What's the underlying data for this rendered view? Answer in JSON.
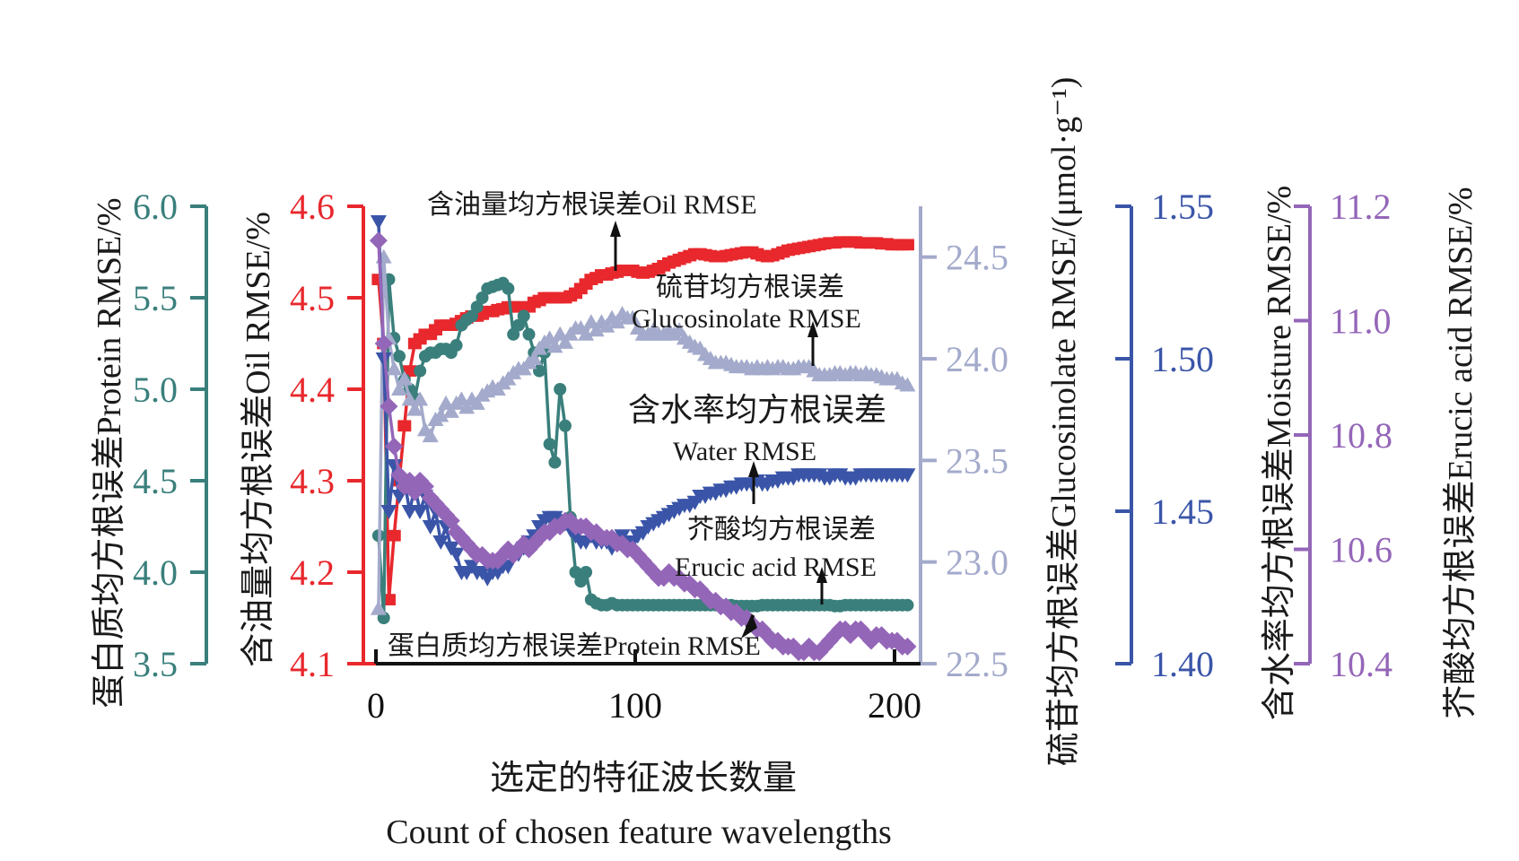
{
  "chart_data": {
    "type": "line",
    "title": "",
    "xlabel": "选定的特征波长数量",
    "xlabel_en": "Count of chosen feature wavelengths",
    "x_axis": {
      "range": [
        0,
        205
      ],
      "ticks": [
        0,
        100,
        200
      ],
      "tick_labels": [
        "0",
        "100",
        "200"
      ]
    },
    "axes": [
      {
        "id": "protein",
        "label": "蛋白质均方根误差Protein RMSE/%",
        "color": "#3a7f7c",
        "side": "left-outer",
        "range": [
          3.5,
          6.0
        ],
        "ticks": [
          "3.5",
          "4.0",
          "4.5",
          "5.0",
          "5.5",
          "6.0"
        ]
      },
      {
        "id": "oil",
        "label": "含油量均方根误差Oil RMSE/%",
        "color": "#e8282d",
        "side": "left",
        "range": [
          4.1,
          4.6
        ],
        "ticks": [
          "4.1",
          "4.2",
          "4.3",
          "4.4",
          "4.5",
          "4.6"
        ]
      },
      {
        "id": "glucosinolate",
        "label": "硫苷均方根误差Glucosinolate RMSE/(μmol·g⁻¹)",
        "color": "#a3aacb",
        "side": "right",
        "range": [
          22.5,
          24.75
        ],
        "ticks": [
          "22.5",
          "23.0",
          "23.5",
          "24.0",
          "24.5"
        ]
      },
      {
        "id": "moisture",
        "label": "含水率均方根误差Moisture RMSE/%",
        "color": "#3a55a8",
        "side": "right-outer",
        "range": [
          1.4,
          1.55
        ],
        "ticks": [
          "1.40",
          "1.45",
          "1.50",
          "1.55"
        ]
      },
      {
        "id": "erucic",
        "label": "芥酸均方根误差Erucic acid RMSE/%",
        "color": "#9466b8",
        "side": "right-outer-2",
        "range": [
          10.4,
          11.2
        ],
        "ticks": [
          "10.4",
          "10.6",
          "10.8",
          "11.0",
          "11.2"
        ]
      }
    ],
    "series": [
      {
        "name": "Oil RMSE",
        "axis": "oil",
        "marker": "square",
        "color": "#e8282d",
        "x": [
          1,
          3,
          5,
          7,
          9,
          11,
          13,
          15,
          17,
          19,
          21,
          23,
          25,
          27,
          29,
          31,
          33,
          35,
          37,
          39,
          41,
          43,
          45,
          47,
          49,
          51,
          53,
          55,
          57,
          59,
          61,
          63,
          65,
          67,
          69,
          71,
          73,
          75,
          77,
          79,
          81,
          83,
          85,
          87,
          89,
          91,
          93,
          95,
          97,
          99,
          101,
          103,
          105,
          107,
          109,
          111,
          113,
          115,
          117,
          119,
          121,
          123,
          125,
          127,
          129,
          131,
          133,
          135,
          137,
          139,
          141,
          143,
          145,
          147,
          149,
          151,
          153,
          155,
          157,
          159,
          161,
          163,
          165,
          167,
          169,
          171,
          173,
          175,
          177,
          179,
          181,
          183,
          185,
          187,
          189,
          191,
          193,
          195,
          197,
          199,
          201,
          203,
          205
        ],
        "y": [
          4.52,
          4.45,
          4.17,
          4.24,
          4.3,
          4.36,
          4.42,
          4.45,
          4.455,
          4.46,
          4.46,
          4.465,
          4.47,
          4.47,
          4.47,
          4.472,
          4.475,
          4.478,
          4.48,
          4.48,
          4.482,
          4.485,
          4.485,
          4.487,
          4.488,
          4.49,
          4.49,
          4.49,
          4.49,
          4.49,
          4.495,
          4.497,
          4.5,
          4.5,
          4.5,
          4.5,
          4.5,
          4.502,
          4.505,
          4.51,
          4.515,
          4.52,
          4.522,
          4.525,
          4.525,
          4.527,
          4.528,
          4.53,
          4.53,
          4.53,
          4.528,
          4.527,
          4.528,
          4.53,
          4.532,
          4.535,
          4.538,
          4.54,
          4.542,
          4.544,
          4.546,
          4.548,
          4.548,
          4.547,
          4.546,
          4.545,
          4.545,
          4.546,
          4.547,
          4.548,
          4.549,
          4.55,
          4.55,
          4.548,
          4.546,
          4.545,
          4.546,
          4.548,
          4.55,
          4.552,
          4.553,
          4.554,
          4.555,
          4.556,
          4.557,
          4.558,
          4.559,
          4.56,
          4.56,
          4.561,
          4.561,
          4.561,
          4.561,
          4.56,
          4.56,
          4.56,
          4.56,
          4.559,
          4.559,
          4.558,
          4.558,
          4.558,
          4.558
        ]
      },
      {
        "name": "Protein RMSE",
        "axis": "protein",
        "marker": "circle",
        "color": "#3a7f7c",
        "x": [
          1,
          3,
          5,
          7,
          9,
          11,
          13,
          15,
          17,
          19,
          21,
          23,
          25,
          27,
          29,
          31,
          33,
          35,
          37,
          39,
          41,
          43,
          45,
          47,
          49,
          51,
          53,
          55,
          57,
          59,
          61,
          63,
          65,
          67,
          69,
          71,
          73,
          75,
          77,
          79,
          81,
          83,
          85,
          87,
          89,
          91,
          93,
          95,
          97,
          99,
          101,
          103,
          105,
          107,
          109,
          111,
          113,
          115,
          117,
          119,
          121,
          123,
          125,
          127,
          129,
          131,
          133,
          135,
          137,
          139,
          141,
          143,
          145,
          147,
          149,
          151,
          153,
          155,
          157,
          159,
          161,
          163,
          165,
          167,
          169,
          171,
          173,
          175,
          177,
          179,
          181,
          183,
          185,
          187,
          189,
          191,
          193,
          195,
          197,
          199,
          201,
          203,
          205
        ],
        "y": [
          4.2,
          3.75,
          5.6,
          5.28,
          5.18,
          5.05,
          5.0,
          4.95,
          5.1,
          5.18,
          5.2,
          5.2,
          5.22,
          5.22,
          5.2,
          5.24,
          5.35,
          5.38,
          5.4,
          5.45,
          5.5,
          5.55,
          5.56,
          5.57,
          5.58,
          5.55,
          5.3,
          5.35,
          5.4,
          5.3,
          5.2,
          5.1,
          5.2,
          4.7,
          4.6,
          5.0,
          4.8,
          4.3,
          4.0,
          3.95,
          4.0,
          3.85,
          3.83,
          3.82,
          3.82,
          3.83,
          3.82,
          3.82,
          3.82,
          3.82,
          3.82,
          3.82,
          3.82,
          3.82,
          3.82,
          3.82,
          3.82,
          3.82,
          3.82,
          3.82,
          3.82,
          3.82,
          3.82,
          3.82,
          3.82,
          3.82,
          3.82,
          3.82,
          3.82,
          3.815,
          3.815,
          3.815,
          3.815,
          3.815,
          3.82,
          3.82,
          3.82,
          3.82,
          3.82,
          3.82,
          3.82,
          3.82,
          3.82,
          3.82,
          3.82,
          3.82,
          3.82,
          3.82,
          3.815,
          3.815,
          3.82,
          3.82,
          3.82,
          3.82,
          3.82,
          3.82,
          3.82,
          3.82,
          3.82,
          3.82,
          3.82,
          3.82,
          3.82
        ]
      },
      {
        "name": "Glucosinolate RMSE",
        "axis": "glucosinolate",
        "marker": "triangle-up",
        "color": "#a3aacb",
        "x": [
          1,
          3,
          5,
          7,
          9,
          11,
          13,
          15,
          17,
          19,
          21,
          23,
          25,
          27,
          29,
          31,
          33,
          35,
          37,
          39,
          41,
          43,
          45,
          47,
          49,
          51,
          53,
          55,
          57,
          59,
          61,
          63,
          65,
          67,
          69,
          71,
          73,
          75,
          77,
          79,
          81,
          83,
          85,
          87,
          89,
          91,
          93,
          95,
          97,
          99,
          101,
          103,
          105,
          107,
          109,
          111,
          113,
          115,
          117,
          119,
          121,
          123,
          125,
          127,
          129,
          131,
          133,
          135,
          137,
          139,
          141,
          143,
          145,
          147,
          149,
          151,
          153,
          155,
          157,
          159,
          161,
          163,
          165,
          167,
          169,
          171,
          173,
          175,
          177,
          179,
          181,
          183,
          185,
          187,
          189,
          191,
          193,
          195,
          197,
          199,
          201,
          203,
          205
        ],
        "y": [
          22.77,
          24.5,
          24.1,
          23.95,
          23.85,
          23.9,
          23.8,
          23.75,
          23.8,
          23.65,
          23.62,
          23.7,
          23.72,
          23.78,
          23.74,
          23.78,
          23.8,
          23.76,
          23.8,
          23.78,
          23.82,
          23.84,
          23.86,
          23.85,
          23.88,
          23.9,
          23.93,
          23.95,
          23.95,
          23.98,
          24.0,
          24.05,
          24.08,
          24.1,
          24.06,
          24.12,
          24.08,
          24.12,
          24.15,
          24.15,
          24.12,
          24.18,
          24.14,
          24.18,
          24.16,
          24.2,
          24.18,
          24.22,
          24.2,
          24.2,
          24.15,
          24.12,
          24.12,
          24.14,
          24.12,
          24.12,
          24.14,
          24.12,
          24.14,
          24.1,
          24.08,
          24.06,
          24.05,
          24.02,
          24.0,
          23.98,
          23.98,
          23.98,
          23.97,
          23.96,
          23.96,
          23.96,
          23.95,
          23.96,
          23.95,
          23.96,
          23.95,
          23.96,
          23.96,
          23.95,
          23.95,
          23.96,
          23.96,
          23.96,
          23.94,
          23.92,
          23.92,
          23.92,
          23.93,
          23.93,
          23.92,
          23.93,
          23.93,
          23.92,
          23.93,
          23.92,
          23.92,
          23.91,
          23.9,
          23.9,
          23.9,
          23.88,
          23.87
        ]
      },
      {
        "name": "Water RMSE",
        "axis": "moisture",
        "marker": "triangle-down",
        "color": "#3a55a8",
        "x": [
          1,
          3,
          5,
          7,
          9,
          11,
          13,
          15,
          17,
          19,
          21,
          23,
          25,
          27,
          29,
          31,
          33,
          35,
          37,
          39,
          41,
          43,
          45,
          47,
          49,
          51,
          53,
          55,
          57,
          59,
          61,
          63,
          65,
          67,
          69,
          71,
          73,
          75,
          77,
          79,
          81,
          83,
          85,
          87,
          89,
          91,
          93,
          95,
          97,
          99,
          101,
          103,
          105,
          107,
          109,
          111,
          113,
          115,
          117,
          119,
          121,
          123,
          125,
          127,
          129,
          131,
          133,
          135,
          137,
          139,
          141,
          143,
          145,
          147,
          149,
          151,
          153,
          155,
          157,
          159,
          161,
          163,
          165,
          167,
          169,
          171,
          173,
          175,
          177,
          179,
          181,
          183,
          185,
          187,
          189,
          191,
          193,
          195,
          197,
          199,
          201,
          203,
          205
        ],
        "y": [
          1.545,
          1.5,
          1.45,
          1.465,
          1.455,
          1.46,
          1.45,
          1.458,
          1.45,
          1.455,
          1.445,
          1.45,
          1.44,
          1.445,
          1.438,
          1.436,
          1.43,
          1.43,
          1.432,
          1.43,
          1.43,
          1.428,
          1.43,
          1.43,
          1.432,
          1.432,
          1.435,
          1.436,
          1.438,
          1.44,
          1.442,
          1.445,
          1.447,
          1.448,
          1.448,
          1.447,
          1.446,
          1.444,
          1.442,
          1.44,
          1.44,
          1.442,
          1.44,
          1.44,
          1.44,
          1.438,
          1.44,
          1.442,
          1.44,
          1.44,
          1.442,
          1.443,
          1.445,
          1.446,
          1.447,
          1.448,
          1.449,
          1.45,
          1.451,
          1.452,
          1.452,
          1.453,
          1.455,
          1.455,
          1.456,
          1.456,
          1.457,
          1.457,
          1.458,
          1.458,
          1.459,
          1.459,
          1.459,
          1.46,
          1.459,
          1.459,
          1.46,
          1.46,
          1.461,
          1.461,
          1.461,
          1.462,
          1.462,
          1.462,
          1.462,
          1.462,
          1.461,
          1.461,
          1.462,
          1.462,
          1.461,
          1.461,
          1.461,
          1.462,
          1.462,
          1.462,
          1.462,
          1.462,
          1.462,
          1.462,
          1.462,
          1.462,
          1.462
        ]
      },
      {
        "name": "Erucic acid RMSE",
        "axis": "erucic",
        "marker": "diamond",
        "color": "#9466b8",
        "x": [
          1,
          3,
          5,
          7,
          9,
          11,
          13,
          15,
          17,
          19,
          21,
          23,
          25,
          27,
          29,
          31,
          33,
          35,
          37,
          39,
          41,
          43,
          45,
          47,
          49,
          51,
          53,
          55,
          57,
          59,
          61,
          63,
          65,
          67,
          69,
          71,
          73,
          75,
          77,
          79,
          81,
          83,
          85,
          87,
          89,
          91,
          93,
          95,
          97,
          99,
          101,
          103,
          105,
          107,
          109,
          111,
          113,
          115,
          117,
          119,
          121,
          123,
          125,
          127,
          129,
          131,
          133,
          135,
          137,
          139,
          141,
          143,
          145,
          147,
          149,
          151,
          153,
          155,
          157,
          159,
          161,
          163,
          165,
          167,
          169,
          171,
          173,
          175,
          177,
          179,
          181,
          183,
          185,
          187,
          189,
          191,
          193,
          195,
          197,
          199,
          201,
          203,
          205
        ],
        "y": [
          11.14,
          10.96,
          10.85,
          10.78,
          10.73,
          10.71,
          10.72,
          10.7,
          10.72,
          10.71,
          10.69,
          10.68,
          10.67,
          10.66,
          10.65,
          10.63,
          10.62,
          10.61,
          10.6,
          10.59,
          10.59,
          10.58,
          10.58,
          10.58,
          10.59,
          10.6,
          10.59,
          10.6,
          10.61,
          10.6,
          10.61,
          10.62,
          10.63,
          10.63,
          10.64,
          10.64,
          10.65,
          10.65,
          10.64,
          10.64,
          10.64,
          10.63,
          10.63,
          10.62,
          10.62,
          10.62,
          10.61,
          10.61,
          10.6,
          10.6,
          10.59,
          10.58,
          10.57,
          10.56,
          10.55,
          10.55,
          10.56,
          10.55,
          10.55,
          10.54,
          10.54,
          10.53,
          10.53,
          10.52,
          10.51,
          10.51,
          10.5,
          10.5,
          10.49,
          10.49,
          10.48,
          10.48,
          10.47,
          10.46,
          10.46,
          10.45,
          10.44,
          10.44,
          10.43,
          10.43,
          10.43,
          10.42,
          10.42,
          10.43,
          10.42,
          10.42,
          10.43,
          10.44,
          10.45,
          10.46,
          10.46,
          10.45,
          10.46,
          10.46,
          10.45,
          10.44,
          10.45,
          10.45,
          10.44,
          10.44,
          10.44,
          10.43,
          10.43
        ]
      }
    ],
    "annotations": [
      {
        "id": "oil",
        "lines": [
          "含油量均方根误差Oil RMSE"
        ]
      },
      {
        "id": "glucosinolate",
        "lines": [
          "硫苷均方根误差",
          "Glucosinolate RMSE"
        ]
      },
      {
        "id": "water",
        "lines": [
          "含水率均方根误差",
          "Water RMSE"
        ]
      },
      {
        "id": "erucic",
        "lines": [
          "芥酸均方根误差",
          "Erucic acid RMSE"
        ]
      },
      {
        "id": "protein",
        "lines": [
          "蛋白质均方根误差Protein RMSE"
        ]
      }
    ],
    "legend": "none",
    "grid": false
  }
}
